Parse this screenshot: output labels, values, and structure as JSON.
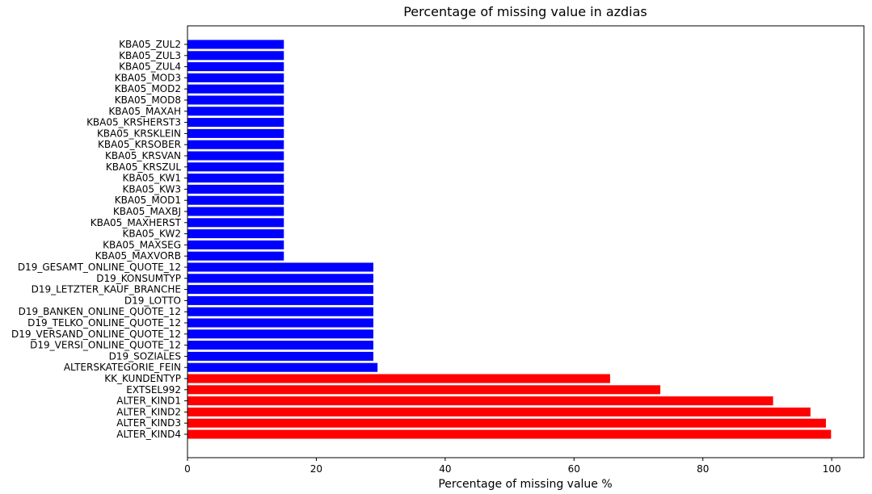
{
  "chart_data": {
    "type": "bar",
    "orientation": "horizontal",
    "title": "Percentage of missing value in azdias",
    "xlabel": "Percentage of missing value %",
    "ylabel": "",
    "xlim": [
      0,
      105
    ],
    "xticks": [
      0,
      20,
      40,
      60,
      80,
      100
    ],
    "grid": false,
    "categories": [
      "KBA05_ZUL2",
      "KBA05_ZUL3",
      "KBA05_ZUL4",
      "KBA05_MOD3",
      "KBA05_MOD2",
      "KBA05_MOD8",
      "KBA05_MAXAH",
      "KBA05_KRSHERST3",
      "KBA05_KRSKLEIN",
      "KBA05_KRSOBER",
      "KBA05_KRSVAN",
      "KBA05_KRSZUL",
      "KBA05_KW1",
      "KBA05_KW3",
      "KBA05_MOD1",
      "KBA05_MAXBJ",
      "KBA05_MAXHERST",
      "KBA05_KW2",
      "KBA05_MAXSEG",
      "KBA05_MAXVORB",
      "D19_GESAMT_ONLINE_QUOTE_12",
      "D19_KONSUMTYP",
      "D19_LETZTER_KAUF_BRANCHE",
      "D19_LOTTO",
      "D19_BANKEN_ONLINE_QUOTE_12",
      "D19_TELKO_ONLINE_QUOTE_12",
      "D19_VERSAND_ONLINE_QUOTE_12",
      "D19_VERSI_ONLINE_QUOTE_12",
      "D19_SOZIALES",
      "ALTERSKATEGORIE_FEIN",
      "KK_KUNDENTYP",
      "EXTSEL992",
      "ALTER_KIND1",
      "ALTER_KIND2",
      "ALTER_KIND3",
      "ALTER_KIND4"
    ],
    "values": [
      14.96,
      14.96,
      14.96,
      14.96,
      14.96,
      14.96,
      14.96,
      14.96,
      14.96,
      14.96,
      14.96,
      14.96,
      14.96,
      14.96,
      14.96,
      14.96,
      14.96,
      14.96,
      14.96,
      14.96,
      28.85,
      28.85,
      28.85,
      28.85,
      28.85,
      28.85,
      28.85,
      28.85,
      28.85,
      29.5,
      65.6,
      73.4,
      90.9,
      96.7,
      99.1,
      99.9
    ],
    "colors": [
      "#0000ff",
      "#0000ff",
      "#0000ff",
      "#0000ff",
      "#0000ff",
      "#0000ff",
      "#0000ff",
      "#0000ff",
      "#0000ff",
      "#0000ff",
      "#0000ff",
      "#0000ff",
      "#0000ff",
      "#0000ff",
      "#0000ff",
      "#0000ff",
      "#0000ff",
      "#0000ff",
      "#0000ff",
      "#0000ff",
      "#0000ff",
      "#0000ff",
      "#0000ff",
      "#0000ff",
      "#0000ff",
      "#0000ff",
      "#0000ff",
      "#0000ff",
      "#0000ff",
      "#0000ff",
      "#ff0000",
      "#ff0000",
      "#ff0000",
      "#ff0000",
      "#ff0000",
      "#ff0000"
    ]
  }
}
